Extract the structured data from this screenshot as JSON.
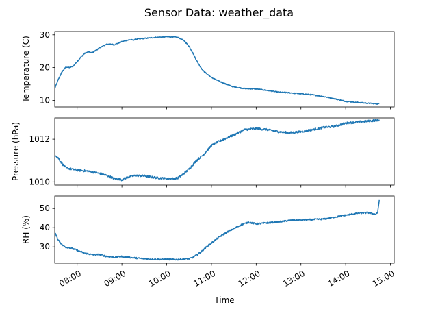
{
  "chart_data": {
    "title": "Sensor Data: weather_data",
    "x_tick_labels": [
      "08:00",
      "09:00",
      "10:00",
      "11:00",
      "12:00",
      "13:00",
      "14:00",
      "15:00"
    ],
    "x_range": [
      "07:30",
      "15:05"
    ],
    "xlabel": "Time",
    "line_color": "#1f77b4",
    "subplots": [
      {
        "type": "line",
        "ylabel": "Temperature (C)",
        "ylim": [
          8,
          31
        ],
        "yticks": [
          10,
          20,
          30
        ],
        "ytick_labels": [
          "10",
          "20",
          "30"
        ],
        "noise": 0.15,
        "series": [
          {
            "x": [
              "07:30",
              "07:35",
              "07:40",
              "07:45",
              "07:50",
              "07:55",
              "08:00",
              "08:05",
              "08:10",
              "08:15",
              "08:20",
              "08:25",
              "08:30",
              "08:40",
              "08:50",
              "09:00",
              "09:10",
              "09:15",
              "09:20",
              "09:30",
              "09:40",
              "09:50",
              "10:00",
              "10:10",
              "10:15",
              "10:20",
              "10:25",
              "10:30",
              "10:35",
              "10:40",
              "10:45",
              "10:50",
              "11:00",
              "11:10",
              "11:20",
              "11:30",
              "11:45",
              "12:00",
              "12:15",
              "12:30",
              "12:45",
              "13:00",
              "13:15",
              "13:30",
              "13:45",
              "14:00",
              "14:15",
              "14:30",
              "14:45"
            ],
            "y": [
              13.6,
              16.5,
              18.8,
              20.2,
              20.0,
              20.5,
              21.8,
              23.2,
              24.3,
              24.8,
              24.5,
              25.2,
              26.0,
              27.2,
              27.0,
              27.9,
              28.5,
              28.4,
              28.7,
              28.9,
              29.1,
              29.3,
              29.4,
              29.3,
              29.2,
              28.7,
              27.8,
              26.5,
              24.5,
              22.2,
              20.3,
              18.8,
              17.0,
              15.9,
              14.9,
              14.1,
              13.6,
              13.5,
              13.0,
              12.5,
              12.3,
              12.0,
              11.7,
              11.2,
              10.5,
              9.7,
              9.4,
              9.1,
              8.9
            ]
          }
        ]
      },
      {
        "type": "line",
        "ylabel": "Pressure (hPa)",
        "ylim": [
          1009.85,
          1013.0
        ],
        "yticks": [
          1010,
          1012
        ],
        "ytick_labels": [
          "1010",
          "1012"
        ],
        "noise": 0.05,
        "series": [
          {
            "x": [
              "07:30",
              "07:35",
              "07:40",
              "07:45",
              "08:00",
              "08:15",
              "08:30",
              "08:40",
              "08:50",
              "09:00",
              "09:10",
              "09:20",
              "09:30",
              "09:40",
              "09:50",
              "10:00",
              "10:10",
              "10:15",
              "10:20",
              "10:30",
              "10:40",
              "10:50",
              "11:00",
              "11:10",
              "11:20",
              "11:30",
              "11:45",
              "12:00",
              "12:15",
              "12:30",
              "12:45",
              "13:00",
              "13:15",
              "13:30",
              "13:45",
              "14:00",
              "14:15",
              "14:30",
              "14:45"
            ],
            "y": [
              1011.3,
              1011.1,
              1010.85,
              1010.65,
              1010.55,
              1010.5,
              1010.4,
              1010.3,
              1010.15,
              1010.1,
              1010.25,
              1010.3,
              1010.28,
              1010.22,
              1010.18,
              1010.15,
              1010.15,
              1010.18,
              1010.3,
              1010.6,
              1011.0,
              1011.3,
              1011.7,
              1011.9,
              1012.05,
              1012.2,
              1012.45,
              1012.5,
              1012.45,
              1012.35,
              1012.3,
              1012.35,
              1012.45,
              1012.55,
              1012.6,
              1012.75,
              1012.8,
              1012.85,
              1012.9
            ]
          }
        ]
      },
      {
        "type": "line",
        "ylabel": "RH (%)",
        "ylim": [
          21.5,
          56.5
        ],
        "yticks": [
          30,
          40,
          50
        ],
        "ytick_labels": [
          "30",
          "40",
          "50"
        ],
        "noise": 0.4,
        "series": [
          {
            "x": [
              "07:30",
              "07:35",
              "07:40",
              "07:45",
              "07:50",
              "08:00",
              "08:10",
              "08:20",
              "08:30",
              "08:40",
              "08:50",
              "09:00",
              "09:15",
              "09:30",
              "09:45",
              "10:00",
              "10:15",
              "10:30",
              "10:35",
              "10:45",
              "10:55",
              "11:00",
              "11:10",
              "11:20",
              "11:30",
              "11:40",
              "11:50",
              "12:00",
              "12:15",
              "12:30",
              "12:45",
              "13:00",
              "13:15",
              "13:30",
              "13:45",
              "14:00",
              "14:15",
              "14:30",
              "14:40",
              "14:43",
              "14:45"
            ],
            "y": [
              37.5,
              33.5,
              31.0,
              29.8,
              29.6,
              28.2,
              26.8,
              25.9,
              26.0,
              25.0,
              24.6,
              25.0,
              24.3,
              23.8,
              23.5,
              23.5,
              23.4,
              23.8,
              24.5,
              27.0,
              30.5,
              32.0,
              35.0,
              37.5,
              39.5,
              41.5,
              42.8,
              42.0,
              42.5,
              43.0,
              43.8,
              44.0,
              44.2,
              44.5,
              45.5,
              46.5,
              47.5,
              47.8,
              47.0,
              48.0,
              54.5
            ]
          }
        ]
      }
    ]
  }
}
